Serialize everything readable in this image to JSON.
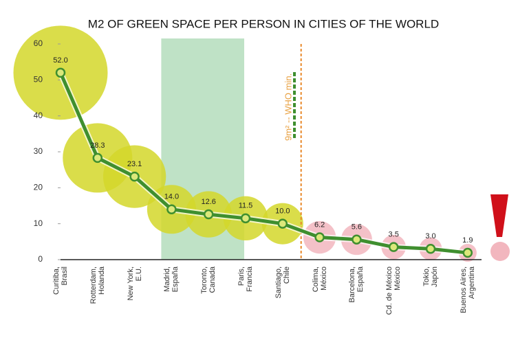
{
  "chart_data": {
    "type": "line",
    "title": "M2 OF GREEN SPACE PER PERSON IN CITIES OF THE WORLD",
    "categories": [
      "Curitiba,\nBrasil",
      "Rotterdam,\nHolanda",
      "New York,\nE.U.",
      "Madrid,\nEspaña",
      "Toronto,\nCanada",
      "Paris,\nFrancia",
      "Santiago,\nChile",
      "Colima,\nMéxico",
      "Barcelona,\nEspaña",
      "Cd. de México\nMéxico",
      "Tokio,\nJapón",
      "Buenos Aires,\nArgentina"
    ],
    "values": [
      52.0,
      28.3,
      23.1,
      14.0,
      12.6,
      11.5,
      10.0,
      6.2,
      5.6,
      3.5,
      3.0,
      1.9
    ],
    "value_labels": [
      "52.0",
      "28.3",
      "23.1",
      "14.0",
      "12.6",
      "11.5",
      "10.0",
      "6.2",
      "5.6",
      "3.5",
      "3.0",
      "1.9"
    ],
    "color": "#3f8f2f",
    "bubble_colors": [
      "#d3d72a",
      "#d3d72a",
      "#d3d72a",
      "#d3d72a",
      "#d3d72a",
      "#d3d72a",
      "#d3d72a",
      "#f2b6be",
      "#f2b6be",
      "#f2b6be",
      "#f2b6be",
      "#f2b6be"
    ],
    "annotation": "9m² -- WHO min.",
    "ylim": [
      0,
      60
    ],
    "yticks": [
      0,
      10,
      20,
      30,
      40,
      50,
      60
    ],
    "grid": false
  }
}
